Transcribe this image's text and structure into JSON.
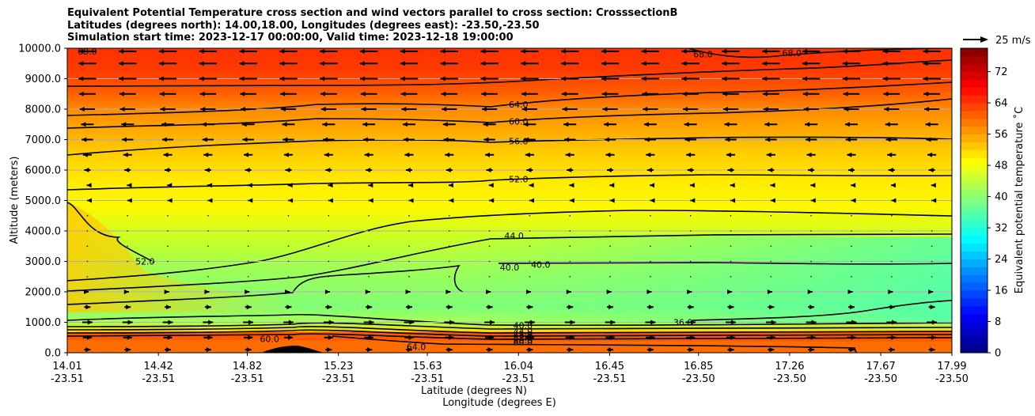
{
  "chart_data": {
    "type": "contour",
    "title_lines": [
      "Equivalent Potential Temperature cross section and wind vectors parallel to cross section: CrosssectionB",
      "Latitudes (degrees north): 14.00,18.00, Longitudes (degrees east): -23.50,-23.50",
      "Simulation start time: 2023-12-17 00:00:00, Valid time: 2023-12-18 19:00:00"
    ],
    "ylabel": "Altitude (meters)",
    "xlabel_lat": "Latitude (degrees N)",
    "xlabel_lon": "Longitude (degrees E)",
    "ylim": [
      0,
      10000
    ],
    "yticks": [
      "0.0",
      "1000.0",
      "2000.0",
      "3000.0",
      "4000.0",
      "5000.0",
      "6000.0",
      "7000.0",
      "8000.0",
      "9000.0",
      "10000.0"
    ],
    "xticks": [
      {
        "lat": "14.01",
        "lon": "-23.51"
      },
      {
        "lat": "14.42",
        "lon": "-23.51"
      },
      {
        "lat": "14.82",
        "lon": "-23.51"
      },
      {
        "lat": "15.23",
        "lon": "-23.51"
      },
      {
        "lat": "15.63",
        "lon": "-23.51"
      },
      {
        "lat": "16.04",
        "lon": "-23.51"
      },
      {
        "lat": "16.45",
        "lon": "-23.51"
      },
      {
        "lat": "16.85",
        "lon": "-23.50"
      },
      {
        "lat": "17.26",
        "lon": "-23.50"
      },
      {
        "lat": "17.67",
        "lon": "-23.50"
      },
      {
        "lat": "17.99",
        "lon": "-23.50"
      }
    ],
    "lat_range": [
      14.01,
      17.99
    ],
    "colorbar": {
      "label": "Equivalent potential temperature ˚C",
      "ticks": [
        "0",
        "8",
        "16",
        "24",
        "32",
        "40",
        "48",
        "56",
        "64",
        "72"
      ],
      "range": [
        0,
        78
      ]
    },
    "quiver_key": "25 m/s",
    "contour_labels": [
      {
        "text": "68.0",
        "lat": 14.1,
        "alt": 9900
      },
      {
        "text": "68.0",
        "lat": 16.87,
        "alt": 9800
      },
      {
        "text": "68.0",
        "lat": 17.27,
        "alt": 9850
      },
      {
        "text": "64.0",
        "lat": 16.04,
        "alt": 8150
      },
      {
        "text": "60.0",
        "lat": 16.04,
        "alt": 7600
      },
      {
        "text": "56.0",
        "lat": 16.04,
        "alt": 6950
      },
      {
        "text": "52.0",
        "lat": 16.04,
        "alt": 5700
      },
      {
        "text": "52.0",
        "lat": 14.36,
        "alt": 3000
      },
      {
        "text": "44.0",
        "lat": 16.02,
        "alt": 3850
      },
      {
        "text": "40.0",
        "lat": 16.0,
        "alt": 2800
      },
      {
        "text": "40.0",
        "lat": 16.14,
        "alt": 2900
      },
      {
        "text": "36.0",
        "lat": 16.78,
        "alt": 1000
      },
      {
        "text": "40.0",
        "lat": 16.06,
        "alt": 900
      },
      {
        "text": "44.0",
        "lat": 16.06,
        "alt": 700
      },
      {
        "text": "48.0",
        "lat": 16.06,
        "alt": 600
      },
      {
        "text": "52.0",
        "lat": 16.06,
        "alt": 500
      },
      {
        "text": "56.0",
        "lat": 16.06,
        "alt": 420
      },
      {
        "text": "60.0",
        "lat": 16.06,
        "alt": 350
      },
      {
        "text": "64.0",
        "lat": 15.58,
        "alt": 200
      },
      {
        "text": "60.0",
        "lat": 14.92,
        "alt": 450
      }
    ],
    "wind_rows": [
      {
        "alt": 9900,
        "u": -14
      },
      {
        "alt": 9500,
        "u": -14
      },
      {
        "alt": 9000,
        "u": -14
      },
      {
        "alt": 8500,
        "u": -13
      },
      {
        "alt": 8000,
        "u": -12
      },
      {
        "alt": 7500,
        "u": -10
      },
      {
        "alt": 7000,
        "u": -9
      },
      {
        "alt": 6500,
        "u": -7
      },
      {
        "alt": 6000,
        "u": -5
      },
      {
        "alt": 5500,
        "u": -1
      },
      {
        "alt": 5000,
        "u": -0.5
      },
      {
        "alt": 4500,
        "u": 0
      },
      {
        "alt": 4000,
        "u": 0
      },
      {
        "alt": 3500,
        "u": 0
      },
      {
        "alt": 3000,
        "u": 0
      },
      {
        "alt": 2500,
        "u": 0
      },
      {
        "alt": 2000,
        "u": 2
      },
      {
        "alt": 1500,
        "u": 5
      },
      {
        "alt": 1000,
        "u": 8
      },
      {
        "alt": 500,
        "u": 7
      },
      {
        "alt": 100,
        "u": 5
      }
    ]
  }
}
